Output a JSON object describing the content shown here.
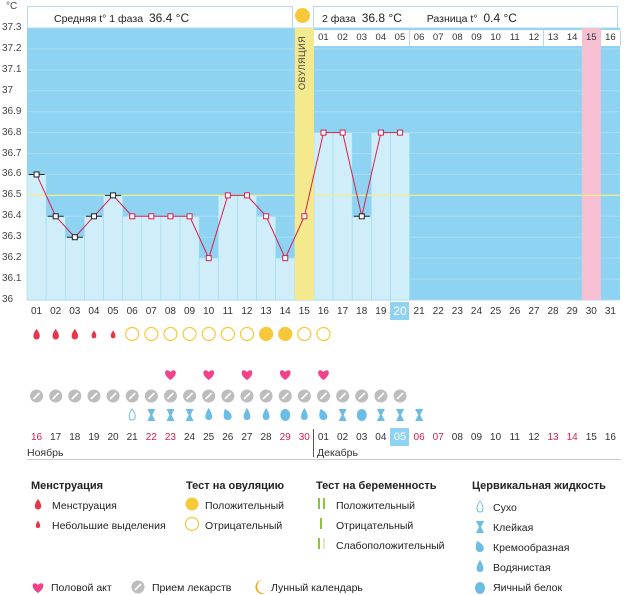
{
  "axis": {
    "unit": "°C",
    "y_labels": [
      "37.3",
      "37.2",
      "37.1",
      "37",
      "36.9",
      "36.8",
      "36.7",
      "36.6",
      "36.5",
      "36.4",
      "36.3",
      "36.2",
      "36.1",
      "36"
    ],
    "cycle_days": [
      "01",
      "02",
      "03",
      "04",
      "05",
      "06",
      "07",
      "08",
      "09",
      "10",
      "11",
      "12",
      "13",
      "14",
      "15",
      "16",
      "17",
      "18",
      "19",
      "20",
      "21",
      "22",
      "23",
      "24",
      "25",
      "26",
      "27",
      "28",
      "29",
      "30",
      "31"
    ],
    "current_day": "20"
  },
  "header": {
    "phase1_label": "Средняя t° 1 фаза",
    "phase1_value": "36.4 °C",
    "phase2_label": "2 фаза",
    "phase2_value": "36.8 °C",
    "diff_label": "Разница t°",
    "diff_value": "0.4 °C",
    "ovulation_label": "ОВУЛЯЦИЯ",
    "phase2_days": [
      "01",
      "02",
      "03",
      "04",
      "05",
      "06",
      "07",
      "08",
      "09",
      "10",
      "11",
      "12",
      "13",
      "14",
      "15",
      "16"
    ]
  },
  "chart_data": {
    "type": "line",
    "x": [
      1,
      2,
      3,
      4,
      5,
      6,
      7,
      8,
      9,
      10,
      11,
      12,
      13,
      14,
      15,
      16,
      17,
      18,
      19,
      20
    ],
    "y": [
      36.6,
      36.4,
      36.3,
      36.4,
      36.5,
      36.4,
      36.4,
      36.4,
      36.4,
      36.2,
      36.5,
      36.5,
      36.4,
      36.2,
      36.4,
      36.8,
      36.8,
      36.4,
      36.8,
      36.8
    ],
    "ylim": [
      36,
      37.3
    ],
    "coverline": 36.5,
    "ovulation_day": 15,
    "expected_period_day": 30,
    "colors": {
      "line": "#d6204d",
      "bars": "#cfeefa",
      "bg": "#8fd3f2",
      "ovulation": "#f5e98e",
      "period": "#f7bfd2",
      "coverline": "#f3ec8a"
    }
  },
  "calendar": {
    "dates": [
      "16",
      "17",
      "18",
      "19",
      "20",
      "21",
      "22",
      "23",
      "24",
      "25",
      "26",
      "27",
      "28",
      "29",
      "30",
      "01",
      "02",
      "03",
      "04",
      "05",
      "06",
      "07",
      "08",
      "09",
      "10",
      "11",
      "12",
      "13",
      "14",
      "15",
      "16"
    ],
    "weekend_index": [
      0,
      6,
      7,
      13,
      14,
      20,
      21,
      27,
      28
    ],
    "month1": "Ноябрь",
    "month2": "Декабрь",
    "today_index": 19
  },
  "markers": {
    "menstruation": [
      "big",
      "big",
      "big",
      "small",
      "small"
    ],
    "ovulation_tests": [
      "neg",
      "neg",
      "neg",
      "neg",
      "neg",
      "neg",
      "neg",
      "pos",
      "pos",
      "neg",
      "neg"
    ],
    "intercourse_days": [
      8,
      10,
      12,
      14,
      16
    ],
    "medication_days": 20,
    "fluid": [
      "dry",
      "sticky",
      "sticky",
      "sticky",
      "watery",
      "creamy",
      "watery",
      "watery",
      "eggwhite",
      "watery",
      "creamy",
      "sticky",
      "eggwhite",
      "sticky",
      "sticky",
      "sticky"
    ]
  },
  "legend": {
    "menstruation_title": "Менструация",
    "menstruation_items": [
      "Менструация",
      "Небольшие выделения"
    ],
    "ovulation_title": "Тест на овуляцию",
    "ovulation_items": [
      "Положительный",
      "Отрицательный"
    ],
    "pregnancy_title": "Тест на беременность",
    "pregnancy_items": [
      "Положительный",
      "Отрицательный",
      "Слабоположительный"
    ],
    "fluid_title": "Цервикальная жидкость",
    "fluid_items": [
      "Сухо",
      "Клейкая",
      "Кремообразная",
      "Водянистая",
      "Яичный белок"
    ],
    "bottom_items": [
      "Половой акт",
      "Прием лекарств",
      "Лунный календарь"
    ]
  }
}
